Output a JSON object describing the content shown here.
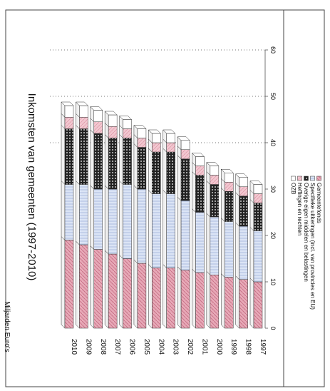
{
  "chart_data": {
    "type": "bar",
    "stacked": true,
    "orientation": "horizontal (page rotated 90°)",
    "title": "Inkomsten van gemeenten (1997-2010)",
    "ylabel": "Miljarden Euro's",
    "xlabel": "",
    "categories": [
      "1997",
      "1998",
      "1999",
      "2000",
      "2001",
      "2002",
      "2003",
      "2004",
      "2005",
      "2006",
      "2007",
      "2008",
      "2009",
      "2010"
    ],
    "ylim": [
      0,
      60
    ],
    "yticks": [
      "0",
      "10",
      "20",
      "30",
      "40",
      "50",
      "60"
    ],
    "grid": "dotted gridlines at 40 and 50",
    "legend_placement": "right box",
    "series": [
      {
        "name": "Gemeentefonds",
        "color": "#d98a9e",
        "pattern": "pink",
        "values": [
          10,
          10.5,
          11,
          11.5,
          12,
          12.5,
          13,
          13,
          14,
          15,
          16,
          17,
          18,
          19
        ]
      },
      {
        "name": "Specifieke uitkeringen (incl. van provincies en EU)",
        "color": "#b8c8e8",
        "pattern": "blue",
        "values": [
          11,
          11.5,
          12,
          12.5,
          13,
          15,
          16,
          16,
          16,
          16,
          14,
          13,
          13,
          12
        ]
      },
      {
        "name": "Overige eigen middelen en belastingen",
        "color": "#3a3a3a",
        "pattern": "dark",
        "values": [
          6,
          6.5,
          6.5,
          7,
          8,
          9,
          9,
          9,
          9,
          10,
          11,
          12,
          12,
          12
        ]
      },
      {
        "name": "Heffingen en rechten",
        "color": "#e8b0bc",
        "pattern": "pink-light",
        "values": [
          2,
          2,
          2,
          2,
          2,
          2,
          2,
          2,
          2,
          2,
          2.5,
          2.5,
          2.5,
          2.5
        ]
      },
      {
        "name": "OZB",
        "color": "#ffffff",
        "pattern": "white",
        "values": [
          2,
          2,
          2,
          2,
          2,
          2,
          2,
          2,
          2,
          2,
          2.5,
          2.5,
          2.5,
          2.5
        ]
      }
    ],
    "legend_order": [
      "OZB",
      "Heffingen en rechten",
      "Overige eigen middelen en belastingen",
      "Specifieke uitkeringen (incl. van provincies en EU)",
      "Gemeentefonds"
    ]
  }
}
